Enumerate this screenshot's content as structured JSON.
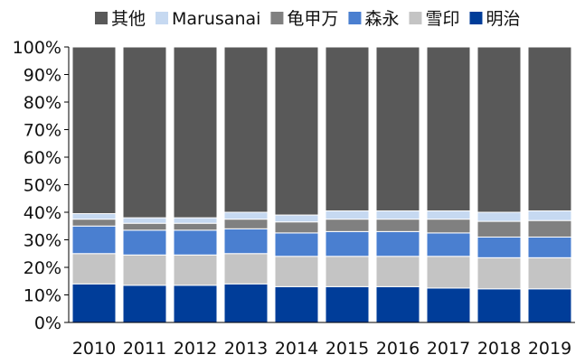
{
  "chart_data": {
    "type": "bar",
    "stacked": true,
    "normalized": true,
    "categories": [
      "2010",
      "2011",
      "2012",
      "2013",
      "2014",
      "2015",
      "2016",
      "2017",
      "2018",
      "2019"
    ],
    "ylim": [
      0,
      100
    ],
    "y_ticks": [
      "0%",
      "10%",
      "20%",
      "30%",
      "40%",
      "50%",
      "60%",
      "70%",
      "80%",
      "90%",
      "100%"
    ],
    "grid": false,
    "legend_position": "top",
    "series": [
      {
        "name": "明治",
        "color": "#003D99",
        "values": [
          14,
          13.5,
          13.5,
          14,
          13,
          13,
          13,
          12.5,
          12.2,
          12.2
        ]
      },
      {
        "name": "雪印",
        "color": "#C4C4C4",
        "values": [
          11,
          11,
          11,
          11,
          11,
          11,
          11,
          11.5,
          11.3,
          11.3
        ]
      },
      {
        "name": "森永",
        "color": "#4A7FD0",
        "values": [
          10,
          9,
          9,
          9,
          8.5,
          9,
          9,
          8.5,
          7.5,
          7.5
        ]
      },
      {
        "name": "龟甲万",
        "color": "#808080",
        "values": [
          2.5,
          2.5,
          2.5,
          3.5,
          4,
          4.5,
          4.5,
          5,
          5.7,
          6
        ]
      },
      {
        "name": "Marusanai",
        "color": "#C6D9F1",
        "values": [
          2,
          2,
          2,
          2.5,
          2.5,
          3,
          3,
          3,
          3.3,
          3.5
        ]
      },
      {
        "name": "其他",
        "color": "#595959",
        "values": [
          60.5,
          62,
          62,
          60,
          61,
          59.5,
          59.5,
          59.5,
          60,
          59.5
        ]
      }
    ],
    "legend_order": [
      "其他",
      "Marusanai",
      "龟甲万",
      "森永",
      "雪印",
      "明治"
    ]
  }
}
